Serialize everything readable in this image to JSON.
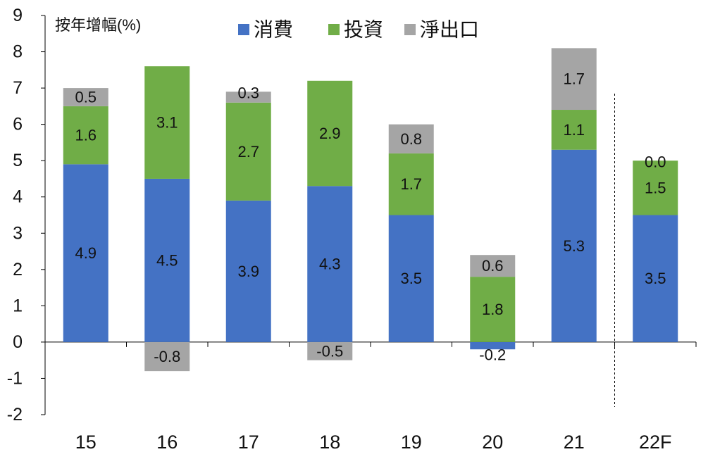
{
  "chart_data": {
    "type": "bar",
    "stacked": true,
    "title": "",
    "xlabel": "",
    "ylabel": "按年增幅(%)",
    "categories": [
      "15",
      "16",
      "17",
      "18",
      "19",
      "20",
      "21",
      "22F"
    ],
    "series": [
      {
        "name": "消費",
        "color": "#4472c4",
        "values": [
          4.9,
          4.5,
          3.9,
          4.3,
          3.5,
          -0.2,
          5.3,
          3.5
        ]
      },
      {
        "name": "投資",
        "color": "#70ad47",
        "values": [
          1.6,
          3.1,
          2.7,
          2.9,
          1.7,
          1.8,
          1.1,
          1.5
        ]
      },
      {
        "name": "淨出口",
        "color": "#a5a5a5",
        "values": [
          0.5,
          -0.8,
          0.3,
          -0.5,
          0.8,
          0.6,
          1.7,
          0.0
        ]
      }
    ],
    "data_labels": [
      [
        "4.9",
        "4.5",
        "3.9",
        "4.3",
        "3.5",
        "-0.2",
        "5.3",
        "3.5"
      ],
      [
        "1.6",
        "3.1",
        "2.7",
        "2.9",
        "1.7",
        "1.8",
        "1.1",
        "1.5"
      ],
      [
        "0.5",
        "-0.8",
        "0.3",
        "-0.5",
        "0.8",
        "0.6",
        "1.7",
        "0.0"
      ]
    ],
    "ylim": [
      -2,
      9
    ],
    "yticks": [
      "-2",
      "-1",
      "0",
      "1",
      "2",
      "3",
      "4",
      "5",
      "6",
      "7",
      "8",
      "9"
    ],
    "grid": false,
    "legend": "top",
    "forecast_divider_after": "21"
  }
}
